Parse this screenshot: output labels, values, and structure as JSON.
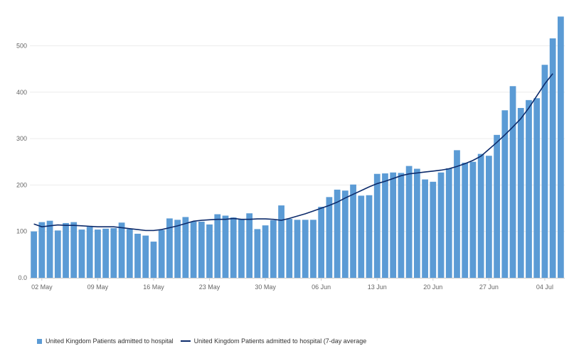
{
  "chart_data": {
    "type": "bar",
    "title": "",
    "xlabel": "",
    "ylabel": "",
    "ylim": [
      0,
      565
    ],
    "yticks": [
      0,
      100,
      200,
      300,
      400,
      500
    ],
    "grid": true,
    "legend_position": "bottom-left",
    "x": [
      "01 May",
      "02 May",
      "03 May",
      "04 May",
      "05 May",
      "06 May",
      "07 May",
      "08 May",
      "09 May",
      "10 May",
      "11 May",
      "12 May",
      "13 May",
      "14 May",
      "15 May",
      "16 May",
      "17 May",
      "18 May",
      "19 May",
      "20 May",
      "21 May",
      "22 May",
      "23 May",
      "24 May",
      "25 May",
      "26 May",
      "27 May",
      "28 May",
      "29 May",
      "30 May",
      "31 May",
      "01 Jun",
      "02 Jun",
      "03 Jun",
      "04 Jun",
      "05 Jun",
      "06 Jun",
      "07 Jun",
      "08 Jun",
      "09 Jun",
      "10 Jun",
      "11 Jun",
      "12 Jun",
      "13 Jun",
      "14 Jun",
      "15 Jun",
      "16 Jun",
      "17 Jun",
      "18 Jun",
      "19 Jun",
      "20 Jun",
      "21 Jun",
      "22 Jun",
      "23 Jun",
      "24 Jun",
      "25 Jun",
      "26 Jun",
      "27 Jun",
      "28 Jun",
      "29 Jun",
      "30 Jun",
      "01 Jul",
      "02 Jul",
      "03 Jul",
      "04 Jul",
      "05 Jul",
      "06 Jul"
    ],
    "xtick_labels": [
      {
        "date": "02 May",
        "label": "02 May"
      },
      {
        "date": "09 May",
        "label": "09 May"
      },
      {
        "date": "16 May",
        "label": "16 May"
      },
      {
        "date": "23 May",
        "label": "23 May"
      },
      {
        "date": "30 May",
        "label": "30 May"
      },
      {
        "date": "06 Jun",
        "label": "06 Jun"
      },
      {
        "date": "13 Jun",
        "label": "13 Jun"
      },
      {
        "date": "20 Jun",
        "label": "20 Jun"
      },
      {
        "date": "27 Jun",
        "label": "27 Jun"
      },
      {
        "date": "04 Jul",
        "label": "04 Jul"
      }
    ],
    "series": [
      {
        "name": "United Kingdom Patients admitted to hospital",
        "type": "bar",
        "color": "#5b9bd5",
        "values": [
          100,
          120,
          123,
          102,
          118,
          120,
          104,
          110,
          104,
          106,
          107,
          119,
          105,
          95,
          91,
          78,
          103,
          128,
          125,
          131,
          121,
          121,
          115,
          137,
          134,
          130,
          126,
          139,
          105,
          113,
          124,
          156,
          127,
          125,
          125,
          125,
          153,
          174,
          190,
          188,
          201,
          177,
          178,
          224,
          225,
          227,
          226,
          241,
          235,
          212,
          207,
          227,
          236,
          275,
          248,
          250,
          267,
          263,
          308,
          361,
          413,
          366,
          383,
          387,
          459,
          516,
          563
        ]
      },
      {
        "name": "United Kingdom Patients admitted to hospital (7-day average",
        "type": "line",
        "color": "#0d2b6b",
        "values": [
          116,
          110,
          112,
          114,
          113,
          113,
          112,
          111,
          110,
          110,
          110,
          108,
          106,
          104,
          102,
          102,
          104,
          108,
          112,
          117,
          122,
          124,
          125,
          126,
          126,
          128,
          126,
          126,
          127,
          127,
          126,
          124,
          128,
          133,
          138,
          144,
          150,
          156,
          163,
          172,
          180,
          188,
          196,
          203,
          208,
          214,
          220,
          224,
          226,
          228,
          230,
          232,
          235,
          240,
          246,
          253,
          262,
          277,
          292,
          308,
          325,
          343,
          366,
          392,
          418,
          440,
          null
        ]
      }
    ]
  }
}
